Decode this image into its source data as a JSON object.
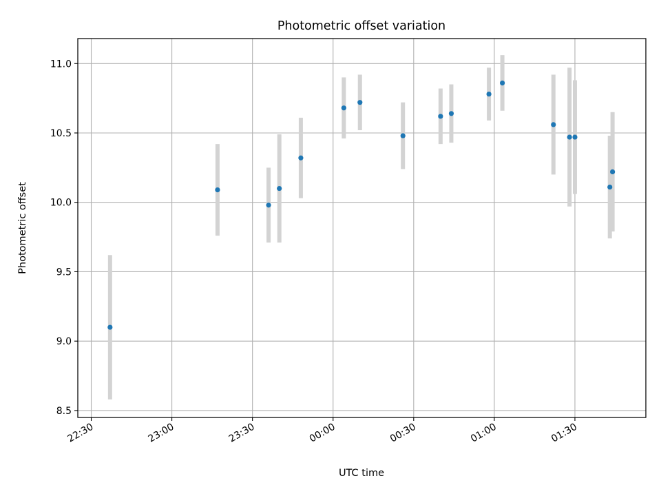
{
  "chart_data": {
    "type": "scatter",
    "title": "Photometric offset variation",
    "xlabel": "UTC time",
    "ylabel": "Photometric offset",
    "x_tick_labels": [
      "22:30",
      "23:00",
      "23:30",
      "00:00",
      "00:30",
      "01:00",
      "01:30"
    ],
    "y_tick_labels": [
      "8.5",
      "9.0",
      "9.5",
      "10.0",
      "10.5",
      "11.0"
    ],
    "xlim": [
      "22:30",
      "01:55"
    ],
    "ylim": [
      8.45,
      11.18
    ],
    "grid": true,
    "points": [
      {
        "x": "22:37",
        "y": 9.1,
        "yerr": 0.52
      },
      {
        "x": "23:17",
        "y": 10.09,
        "yerr": 0.33
      },
      {
        "x": "23:36",
        "y": 9.98,
        "yerr": 0.27
      },
      {
        "x": "23:40",
        "y": 10.1,
        "yerr": 0.39
      },
      {
        "x": "23:48",
        "y": 10.32,
        "yerr": 0.29
      },
      {
        "x": "00:04",
        "y": 10.68,
        "yerr": 0.22
      },
      {
        "x": "00:10",
        "y": 10.72,
        "yerr": 0.2
      },
      {
        "x": "00:26",
        "y": 10.48,
        "yerr": 0.24
      },
      {
        "x": "00:40",
        "y": 10.62,
        "yerr": 0.2
      },
      {
        "x": "00:44",
        "y": 10.64,
        "yerr": 0.21
      },
      {
        "x": "00:58",
        "y": 10.78,
        "yerr": 0.19
      },
      {
        "x": "01:03",
        "y": 10.86,
        "yerr": 0.2
      },
      {
        "x": "01:22",
        "y": 10.56,
        "yerr": 0.36
      },
      {
        "x": "01:28",
        "y": 10.47,
        "yerr": 0.5
      },
      {
        "x": "01:30",
        "y": 10.47,
        "yerr": 0.41
      },
      {
        "x": "01:43",
        "y": 10.11,
        "yerr": 0.37
      },
      {
        "x": "01:44",
        "y": 10.22,
        "yerr": 0.43
      }
    ],
    "colors": {
      "marker": "#1f77b4",
      "errorbar": "#d3d3d3",
      "grid": "#b0b0b0"
    }
  }
}
